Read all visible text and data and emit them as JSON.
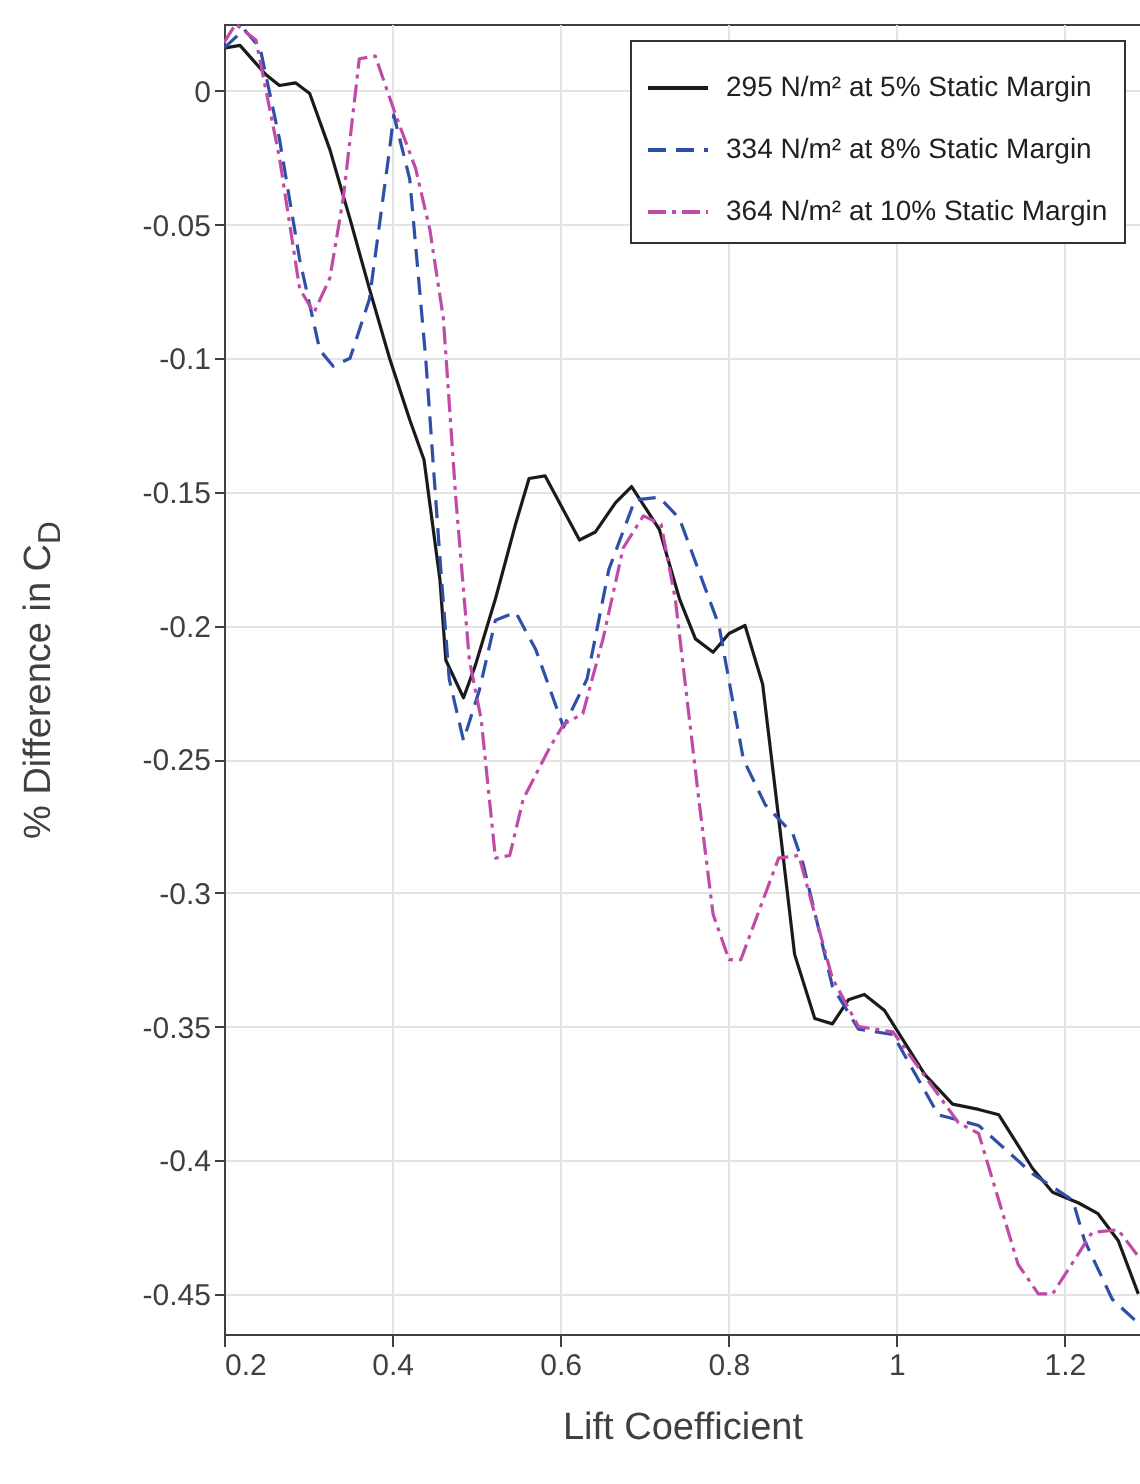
{
  "chart_data": {
    "type": "line",
    "xlabel": "Lift Coefficient",
    "ylabel": "% Difference in C$_{D}$",
    "xlim": [
      0.2,
      1.29
    ],
    "ylim": [
      -0.465,
      0.025
    ],
    "xticks": [
      0.2,
      0.4,
      0.6,
      0.8,
      1,
      1.2
    ],
    "yticks": [
      0,
      -0.05,
      -0.1,
      -0.15,
      -0.2,
      -0.25,
      -0.3,
      -0.35,
      -0.4,
      -0.45
    ],
    "grid": true,
    "legend": "top right",
    "series": [
      {
        "name": "295 N/m² at 5% Static Margin",
        "color": "#1a1a1a",
        "line_style": "solid",
        "x": [
          0.2,
          0.219,
          0.25,
          0.266,
          0.285,
          0.302,
          0.326,
          0.35,
          0.373,
          0.397,
          0.421,
          0.438,
          0.457,
          0.464,
          0.485,
          0.499,
          0.523,
          0.547,
          0.563,
          0.582,
          0.623,
          0.642,
          0.666,
          0.685,
          0.718,
          0.742,
          0.761,
          0.782,
          0.801,
          0.82,
          0.841,
          0.86,
          0.879,
          0.903,
          0.924,
          0.943,
          0.962,
          0.986,
          1.034,
          1.067,
          1.098,
          1.122,
          1.162,
          1.186,
          1.217,
          1.24,
          1.264,
          1.288
        ],
        "values": [
          0.016,
          0.017,
          0.006,
          0.002,
          0.003,
          -0.001,
          -0.022,
          -0.048,
          -0.074,
          -0.1,
          -0.123,
          -0.138,
          -0.183,
          -0.213,
          -0.227,
          -0.215,
          -0.19,
          -0.162,
          -0.145,
          -0.144,
          -0.168,
          -0.165,
          -0.154,
          -0.148,
          -0.164,
          -0.19,
          -0.205,
          -0.21,
          -0.203,
          -0.2,
          -0.222,
          -0.272,
          -0.323,
          -0.347,
          -0.349,
          -0.34,
          -0.338,
          -0.344,
          -0.368,
          -0.379,
          -0.381,
          -0.383,
          -0.403,
          -0.412,
          -0.416,
          -0.42,
          -0.43,
          -0.45
        ]
      },
      {
        "name": "334 N/m² at 8% Static Margin",
        "color": "#2e4fa8",
        "line_style": "dashed",
        "x": [
          0.2,
          0.224,
          0.243,
          0.266,
          0.29,
          0.314,
          0.33,
          0.35,
          0.373,
          0.397,
          0.402,
          0.421,
          0.44,
          0.457,
          0.468,
          0.485,
          0.504,
          0.523,
          0.547,
          0.571,
          0.604,
          0.632,
          0.658,
          0.689,
          0.718,
          0.742,
          0.789,
          0.818,
          0.844,
          0.877,
          0.889,
          0.924,
          0.955,
          0.996,
          1.05,
          1.098,
          1.162,
          1.21,
          1.224,
          1.257,
          1.288
        ],
        "values": [
          0.016,
          0.023,
          0.016,
          -0.018,
          -0.063,
          -0.097,
          -0.103,
          -0.1,
          -0.078,
          -0.022,
          -0.009,
          -0.033,
          -0.1,
          -0.175,
          -0.22,
          -0.243,
          -0.224,
          -0.198,
          -0.195,
          -0.209,
          -0.238,
          -0.22,
          -0.179,
          -0.153,
          -0.152,
          -0.16,
          -0.2,
          -0.25,
          -0.267,
          -0.278,
          -0.289,
          -0.335,
          -0.351,
          -0.353,
          -0.383,
          -0.387,
          -0.405,
          -0.415,
          -0.43,
          -0.452,
          -0.461
        ]
      },
      {
        "name": "364 N/m² at 10% Static Margin",
        "color": "#c04aa8",
        "line_style": "dotted",
        "x": [
          0.2,
          0.214,
          0.238,
          0.266,
          0.29,
          0.307,
          0.326,
          0.342,
          0.361,
          0.38,
          0.402,
          0.428,
          0.445,
          0.461,
          0.476,
          0.492,
          0.506,
          0.523,
          0.54,
          0.556,
          0.587,
          0.604,
          0.627,
          0.651,
          0.675,
          0.699,
          0.72,
          0.737,
          0.765,
          0.782,
          0.801,
          0.815,
          0.86,
          0.884,
          0.924,
          0.955,
          0.996,
          1.074,
          1.098,
          1.145,
          1.169,
          1.186,
          1.233,
          1.264,
          1.288
        ],
        "values": [
          0.018,
          0.025,
          0.019,
          -0.025,
          -0.074,
          -0.083,
          -0.07,
          -0.04,
          0.012,
          0.013,
          -0.007,
          -0.029,
          -0.052,
          -0.085,
          -0.153,
          -0.213,
          -0.235,
          -0.287,
          -0.286,
          -0.265,
          -0.246,
          -0.237,
          -0.233,
          -0.205,
          -0.171,
          -0.159,
          -0.162,
          -0.19,
          -0.265,
          -0.308,
          -0.325,
          -0.325,
          -0.287,
          -0.286,
          -0.332,
          -0.35,
          -0.352,
          -0.386,
          -0.39,
          -0.439,
          -0.45,
          -0.45,
          -0.427,
          -0.426,
          -0.436
        ]
      }
    ]
  }
}
